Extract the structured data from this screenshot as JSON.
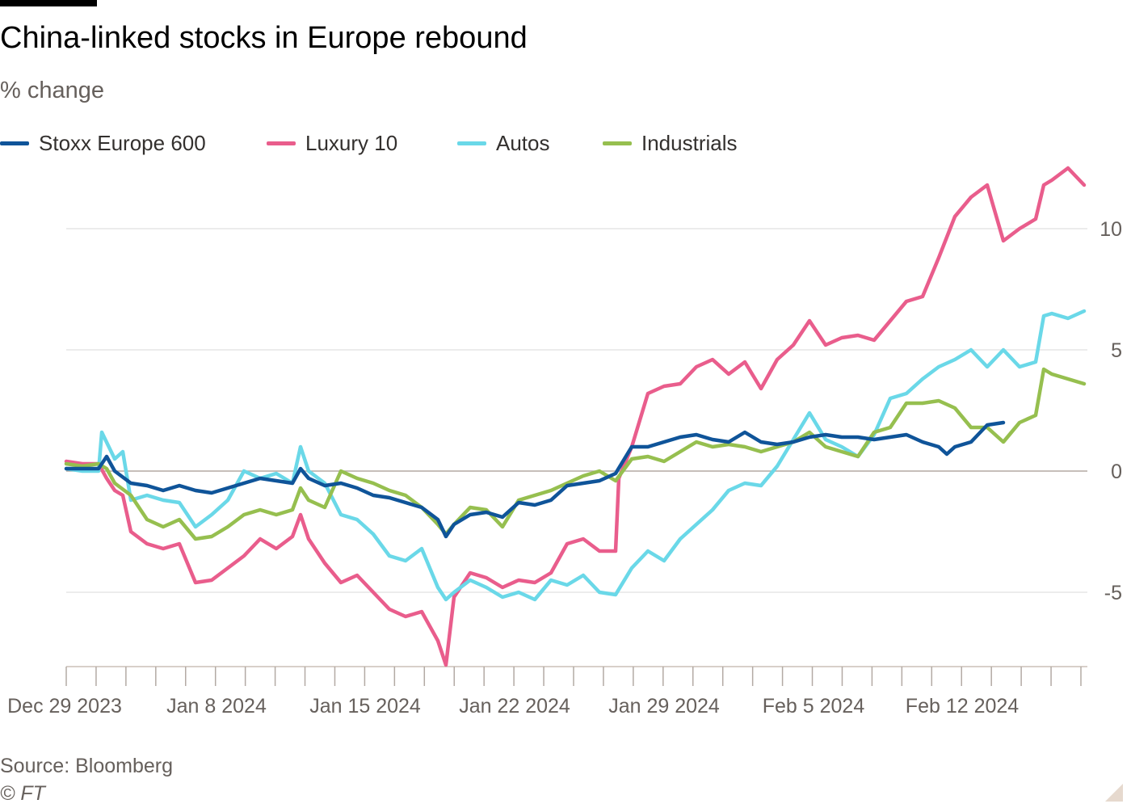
{
  "header": {
    "title": "China-linked stocks in Europe rebound",
    "subtitle": "% change"
  },
  "footer": {
    "source": "Source: Bloomberg",
    "copyright": "© FT"
  },
  "colors": {
    "Stoxx Europe 600": "#0f5499",
    "Luxury 10": "#e95d8c",
    "Autos": "#6ad8e8",
    "Industrials": "#96bf4f",
    "grid": "#e5e5e5",
    "axis": "#66605c"
  },
  "chart_data": {
    "type": "line",
    "title": "China-linked stocks in Europe rebound",
    "subtitle": "% change",
    "ylim": [
      -8,
      12.6
    ],
    "y_ticks": [
      10,
      5,
      0,
      -5
    ],
    "y_tick_labels": [
      "10",
      "5",
      "0",
      "-5"
    ],
    "y_axis_position": "right",
    "x_tick_labels": [
      "Dec 29 2023",
      "Jan 8 2024",
      "Jan 15 2024",
      "Jan 22 2024",
      "Jan 29 2024",
      "Feb 5 2024",
      "Feb 12 2024"
    ],
    "grid": true,
    "legend_position": "top",
    "series": [
      {
        "name": "Stoxx Europe 600",
        "points": [
          [
            0,
            0.1
          ],
          [
            0.5,
            0.1
          ],
          [
            1,
            0.1
          ],
          [
            1.25,
            0.6
          ],
          [
            1.5,
            0
          ],
          [
            2,
            -0.5
          ],
          [
            2.5,
            -0.6
          ],
          [
            3,
            -0.8
          ],
          [
            3.5,
            -0.6
          ],
          [
            4,
            -0.8
          ],
          [
            4.5,
            -0.9
          ],
          [
            5,
            -0.7
          ],
          [
            5.5,
            -0.5
          ],
          [
            6,
            -0.3
          ],
          [
            6.5,
            -0.4
          ],
          [
            7,
            -0.5
          ],
          [
            7.25,
            0.1
          ],
          [
            7.5,
            -0.3
          ],
          [
            8,
            -0.6
          ],
          [
            8.5,
            -0.5
          ],
          [
            9,
            -0.7
          ],
          [
            9.5,
            -1.0
          ],
          [
            10,
            -1.1
          ],
          [
            10.5,
            -1.3
          ],
          [
            11,
            -1.5
          ],
          [
            11.5,
            -2.0
          ],
          [
            11.75,
            -2.7
          ],
          [
            12,
            -2.2
          ],
          [
            12.5,
            -1.8
          ],
          [
            13,
            -1.7
          ],
          [
            13.5,
            -1.9
          ],
          [
            14,
            -1.3
          ],
          [
            14.5,
            -1.4
          ],
          [
            15,
            -1.2
          ],
          [
            15.5,
            -0.6
          ],
          [
            16,
            -0.5
          ],
          [
            16.5,
            -0.4
          ],
          [
            17,
            -0.1
          ],
          [
            17.5,
            1.0
          ],
          [
            18,
            1.0
          ],
          [
            18.5,
            1.2
          ],
          [
            19,
            1.4
          ],
          [
            19.5,
            1.5
          ],
          [
            20,
            1.3
          ],
          [
            20.5,
            1.2
          ],
          [
            21,
            1.6
          ],
          [
            21.5,
            1.2
          ],
          [
            22,
            1.1
          ],
          [
            22.5,
            1.2
          ],
          [
            23,
            1.4
          ],
          [
            23.5,
            1.5
          ],
          [
            24,
            1.4
          ],
          [
            24.5,
            1.4
          ],
          [
            25,
            1.3
          ],
          [
            25.5,
            1.4
          ],
          [
            26,
            1.5
          ],
          [
            26.5,
            1.2
          ],
          [
            27,
            1.0
          ],
          [
            27.25,
            0.7
          ],
          [
            27.5,
            1.0
          ],
          [
            28,
            1.2
          ],
          [
            28.5,
            1.9
          ],
          [
            29,
            2.0
          ]
        ]
      },
      {
        "name": "Luxury 10",
        "points": [
          [
            0,
            0.4
          ],
          [
            0.5,
            0.3
          ],
          [
            1,
            0.3
          ],
          [
            1.25,
            -0.3
          ],
          [
            1.5,
            -0.8
          ],
          [
            1.75,
            -1.0
          ],
          [
            2,
            -2.5
          ],
          [
            2.5,
            -3.0
          ],
          [
            3,
            -3.2
          ],
          [
            3.5,
            -3.0
          ],
          [
            4,
            -4.6
          ],
          [
            4.5,
            -4.5
          ],
          [
            5,
            -4.0
          ],
          [
            5.5,
            -3.5
          ],
          [
            6,
            -2.8
          ],
          [
            6.5,
            -3.2
          ],
          [
            7,
            -2.7
          ],
          [
            7.25,
            -1.8
          ],
          [
            7.5,
            -2.8
          ],
          [
            8,
            -3.8
          ],
          [
            8.5,
            -4.6
          ],
          [
            9,
            -4.3
          ],
          [
            9.5,
            -5.0
          ],
          [
            10,
            -5.7
          ],
          [
            10.5,
            -6.0
          ],
          [
            11,
            -5.8
          ],
          [
            11.5,
            -7.0
          ],
          [
            11.75,
            -8.0
          ],
          [
            12,
            -5.2
          ],
          [
            12.5,
            -4.2
          ],
          [
            13,
            -4.4
          ],
          [
            13.5,
            -4.8
          ],
          [
            14,
            -4.5
          ],
          [
            14.5,
            -4.6
          ],
          [
            15,
            -4.2
          ],
          [
            15.5,
            -3.0
          ],
          [
            16,
            -2.8
          ],
          [
            16.5,
            -3.3
          ],
          [
            17,
            -3.3
          ],
          [
            17.1,
            -0.3
          ],
          [
            17.5,
            1.0
          ],
          [
            18,
            3.2
          ],
          [
            18.5,
            3.5
          ],
          [
            19,
            3.6
          ],
          [
            19.5,
            4.3
          ],
          [
            20,
            4.6
          ],
          [
            20.5,
            4.0
          ],
          [
            21,
            4.5
          ],
          [
            21.5,
            3.4
          ],
          [
            22,
            4.6
          ],
          [
            22.5,
            5.2
          ],
          [
            23,
            6.2
          ],
          [
            23.5,
            5.2
          ],
          [
            24,
            5.5
          ],
          [
            24.5,
            5.6
          ],
          [
            25,
            5.4
          ],
          [
            25.5,
            6.2
          ],
          [
            26,
            7.0
          ],
          [
            26.5,
            7.2
          ],
          [
            27,
            8.8
          ],
          [
            27.5,
            10.5
          ],
          [
            28,
            11.3
          ],
          [
            28.5,
            11.8
          ],
          [
            29,
            9.5
          ],
          [
            29.5,
            10.0
          ],
          [
            30,
            10.4
          ],
          [
            30.25,
            11.8
          ],
          [
            30.5,
            12.0
          ],
          [
            31,
            12.5
          ],
          [
            31.5,
            11.8
          ]
        ]
      },
      {
        "name": "Autos",
        "points": [
          [
            0,
            0.1
          ],
          [
            0.5,
            0
          ],
          [
            1,
            0
          ],
          [
            1.1,
            1.6
          ],
          [
            1.5,
            0.5
          ],
          [
            1.75,
            0.8
          ],
          [
            2,
            -1.2
          ],
          [
            2.5,
            -1.0
          ],
          [
            3,
            -1.2
          ],
          [
            3.5,
            -1.3
          ],
          [
            4,
            -2.3
          ],
          [
            4.5,
            -1.8
          ],
          [
            5,
            -1.2
          ],
          [
            5.5,
            0
          ],
          [
            6,
            -0.3
          ],
          [
            6.5,
            -0.1
          ],
          [
            7,
            -0.5
          ],
          [
            7.25,
            1.0
          ],
          [
            7.5,
            0
          ],
          [
            8,
            -0.5
          ],
          [
            8.5,
            -1.8
          ],
          [
            9,
            -2.0
          ],
          [
            9.5,
            -2.6
          ],
          [
            10,
            -3.5
          ],
          [
            10.5,
            -3.7
          ],
          [
            11,
            -3.2
          ],
          [
            11.5,
            -4.8
          ],
          [
            11.75,
            -5.3
          ],
          [
            12,
            -5.0
          ],
          [
            12.5,
            -4.5
          ],
          [
            13,
            -4.8
          ],
          [
            13.5,
            -5.2
          ],
          [
            14,
            -5.0
          ],
          [
            14.5,
            -5.3
          ],
          [
            15,
            -4.5
          ],
          [
            15.5,
            -4.7
          ],
          [
            16,
            -4.3
          ],
          [
            16.5,
            -5.0
          ],
          [
            17,
            -5.1
          ],
          [
            17.5,
            -4.0
          ],
          [
            18,
            -3.3
          ],
          [
            18.5,
            -3.7
          ],
          [
            19,
            -2.8
          ],
          [
            19.5,
            -2.2
          ],
          [
            20,
            -1.6
          ],
          [
            20.5,
            -0.8
          ],
          [
            21,
            -0.5
          ],
          [
            21.5,
            -0.6
          ],
          [
            22,
            0.2
          ],
          [
            22.5,
            1.3
          ],
          [
            23,
            2.4
          ],
          [
            23.5,
            1.3
          ],
          [
            24,
            1.0
          ],
          [
            24.5,
            0.6
          ],
          [
            25,
            1.5
          ],
          [
            25.5,
            3.0
          ],
          [
            26,
            3.2
          ],
          [
            26.5,
            3.8
          ],
          [
            27,
            4.3
          ],
          [
            27.5,
            4.6
          ],
          [
            28,
            5.0
          ],
          [
            28.5,
            4.3
          ],
          [
            29,
            5.0
          ],
          [
            29.5,
            4.3
          ],
          [
            30,
            4.5
          ],
          [
            30.25,
            6.4
          ],
          [
            30.5,
            6.5
          ],
          [
            31,
            6.3
          ],
          [
            31.5,
            6.6
          ]
        ]
      },
      {
        "name": "Industrials",
        "points": [
          [
            0,
            0.3
          ],
          [
            0.5,
            0.2
          ],
          [
            1,
            0.3
          ],
          [
            1.25,
            0.1
          ],
          [
            1.5,
            -0.5
          ],
          [
            2,
            -1.0
          ],
          [
            2.5,
            -2.0
          ],
          [
            3,
            -2.3
          ],
          [
            3.5,
            -2.0
          ],
          [
            4,
            -2.8
          ],
          [
            4.5,
            -2.7
          ],
          [
            5,
            -2.3
          ],
          [
            5.5,
            -1.8
          ],
          [
            6,
            -1.6
          ],
          [
            6.5,
            -1.8
          ],
          [
            7,
            -1.6
          ],
          [
            7.25,
            -0.7
          ],
          [
            7.5,
            -1.2
          ],
          [
            8,
            -1.5
          ],
          [
            8.5,
            0
          ],
          [
            9,
            -0.3
          ],
          [
            9.5,
            -0.5
          ],
          [
            10,
            -0.8
          ],
          [
            10.5,
            -1.0
          ],
          [
            11,
            -1.5
          ],
          [
            11.5,
            -2.2
          ],
          [
            11.75,
            -2.6
          ],
          [
            12,
            -2.2
          ],
          [
            12.5,
            -1.5
          ],
          [
            13,
            -1.6
          ],
          [
            13.5,
            -2.3
          ],
          [
            14,
            -1.2
          ],
          [
            14.5,
            -1.0
          ],
          [
            15,
            -0.8
          ],
          [
            15.5,
            -0.5
          ],
          [
            16,
            -0.2
          ],
          [
            16.5,
            0
          ],
          [
            17,
            -0.4
          ],
          [
            17.5,
            0.5
          ],
          [
            18,
            0.6
          ],
          [
            18.5,
            0.4
          ],
          [
            19,
            0.8
          ],
          [
            19.5,
            1.2
          ],
          [
            20,
            1.0
          ],
          [
            20.5,
            1.1
          ],
          [
            21,
            1.0
          ],
          [
            21.5,
            0.8
          ],
          [
            22,
            1.0
          ],
          [
            22.5,
            1.2
          ],
          [
            23,
            1.6
          ],
          [
            23.5,
            1.0
          ],
          [
            24,
            0.8
          ],
          [
            24.5,
            0.6
          ],
          [
            25,
            1.6
          ],
          [
            25.5,
            1.8
          ],
          [
            26,
            2.8
          ],
          [
            26.5,
            2.8
          ],
          [
            27,
            2.9
          ],
          [
            27.5,
            2.6
          ],
          [
            28,
            1.8
          ],
          [
            28.5,
            1.8
          ],
          [
            29,
            1.2
          ],
          [
            29.5,
            2.0
          ],
          [
            30,
            2.3
          ],
          [
            30.25,
            4.2
          ],
          [
            30.5,
            4.0
          ],
          [
            31,
            3.8
          ],
          [
            31.5,
            3.6
          ]
        ]
      }
    ]
  }
}
